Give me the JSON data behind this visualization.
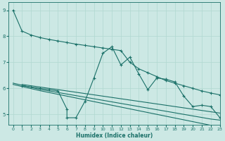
{
  "xlabel": "Humidex (Indice chaleur)",
  "background_color": "#cce8e4",
  "line_color": "#1a7068",
  "grid_color": "#b0d8d0",
  "xlim": [
    -0.5,
    23
  ],
  "ylim": [
    4.6,
    9.3
  ],
  "xticks": [
    0,
    1,
    2,
    3,
    4,
    5,
    6,
    7,
    8,
    9,
    10,
    11,
    12,
    13,
    14,
    15,
    16,
    17,
    18,
    19,
    20,
    21,
    22,
    23
  ],
  "yticks": [
    5,
    6,
    7,
    8,
    9
  ],
  "series1_x": [
    0,
    1,
    2,
    3,
    4,
    5,
    6,
    7,
    8,
    9,
    10,
    11,
    12,
    13,
    14,
    15,
    16,
    17,
    18,
    19,
    20,
    21,
    22,
    23
  ],
  "series1_y": [
    9.0,
    8.2,
    8.05,
    7.95,
    7.88,
    7.82,
    7.76,
    7.7,
    7.65,
    7.6,
    7.55,
    7.5,
    7.45,
    7.0,
    6.75,
    6.6,
    6.45,
    6.3,
    6.2,
    6.1,
    6.0,
    5.9,
    5.82,
    5.75
  ],
  "series2_x": [
    1,
    2,
    3,
    4,
    5,
    6,
    7,
    8,
    9,
    10,
    11,
    12,
    13,
    14,
    15,
    16,
    17,
    18,
    19,
    20,
    21,
    22,
    23
  ],
  "series2_y": [
    6.15,
    6.1,
    6.05,
    6.0,
    5.95,
    5.9,
    5.85,
    5.8,
    5.75,
    5.7,
    5.65,
    5.6,
    5.55,
    5.5,
    5.45,
    5.4,
    5.35,
    5.3,
    5.25,
    5.2,
    5.15,
    5.1,
    5.05
  ],
  "series3_x": [
    0,
    1,
    2,
    3,
    4,
    5,
    6,
    7,
    8,
    9,
    10,
    11,
    12,
    13,
    14,
    15,
    16,
    17,
    18,
    19,
    20,
    21,
    22,
    23
  ],
  "series3_y": [
    6.2,
    6.12,
    6.04,
    5.96,
    5.9,
    5.84,
    5.78,
    5.72,
    5.66,
    5.6,
    5.54,
    5.48,
    5.42,
    5.36,
    5.3,
    5.24,
    5.18,
    5.12,
    5.06,
    5.0,
    4.94,
    4.88,
    4.82,
    4.78
  ],
  "series4_x": [
    0,
    1,
    2,
    3,
    4,
    5,
    6,
    7,
    8,
    9,
    10,
    11,
    12,
    13,
    14,
    15,
    16,
    17,
    18,
    19,
    20,
    21,
    22,
    23
  ],
  "series4_y": [
    6.15,
    6.07,
    5.99,
    5.91,
    5.84,
    5.77,
    5.7,
    5.63,
    5.56,
    5.49,
    5.42,
    5.35,
    5.28,
    5.21,
    5.14,
    5.07,
    5.0,
    4.93,
    4.86,
    4.79,
    4.72,
    4.65,
    4.58,
    4.52
  ],
  "series5_x": [
    1,
    2,
    3,
    4,
    5,
    6,
    6,
    7,
    8,
    9,
    10,
    11,
    12,
    13,
    14,
    15,
    16,
    17,
    18,
    19,
    20,
    21,
    22,
    23
  ],
  "series5_y": [
    6.1,
    6.05,
    6.0,
    5.95,
    5.9,
    5.2,
    4.87,
    4.87,
    5.5,
    6.4,
    7.35,
    7.6,
    6.9,
    7.2,
    6.55,
    5.95,
    6.4,
    6.35,
    6.25,
    5.7,
    5.3,
    5.35,
    5.3,
    4.88
  ]
}
